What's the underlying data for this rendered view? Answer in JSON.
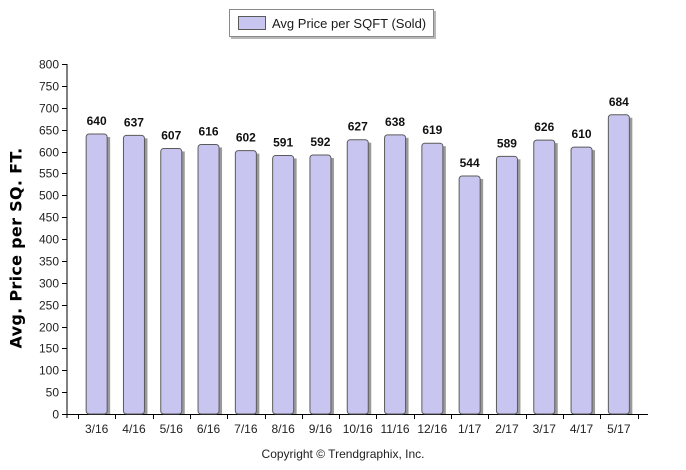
{
  "legend": {
    "label": "Avg Price per SQFT (Sold)"
  },
  "copyright": "Copyright © Trendgraphix, Inc.",
  "chart_data": {
    "type": "bar",
    "title": "",
    "xlabel": "",
    "ylabel": "Avg. Price per SQ. FT.",
    "ylim": [
      0,
      800
    ],
    "yticks": [
      0,
      50,
      100,
      150,
      200,
      250,
      300,
      350,
      400,
      450,
      500,
      550,
      600,
      650,
      700,
      750,
      800
    ],
    "grid": false,
    "legend_position": "top-center",
    "categories": [
      "3/16",
      "4/16",
      "5/16",
      "6/16",
      "7/16",
      "8/16",
      "9/16",
      "10/16",
      "11/16",
      "12/16",
      "1/17",
      "2/17",
      "3/17",
      "4/17",
      "5/17"
    ],
    "series": [
      {
        "name": "Avg Price per SQFT (Sold)",
        "values": [
          640,
          637,
          607,
          616,
          602,
          591,
          592,
          627,
          638,
          619,
          544,
          589,
          626,
          610,
          684
        ],
        "color": "#c8c6f0",
        "edge_color": "#5a5a5a"
      }
    ]
  }
}
